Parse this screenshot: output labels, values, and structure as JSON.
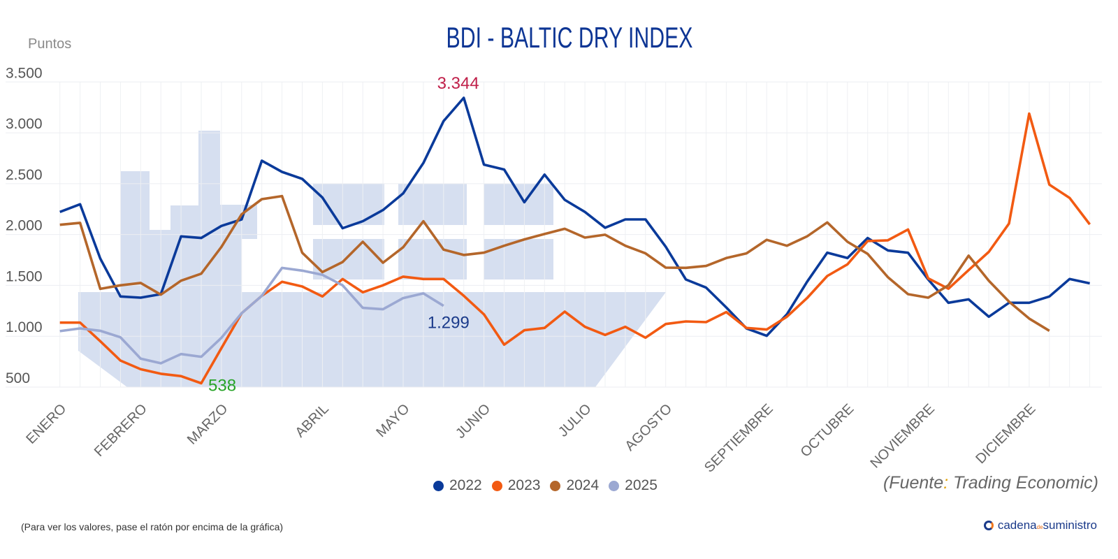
{
  "header": {
    "title": "BDI - BALTIC DRY INDEX",
    "y_unit": "Puntos"
  },
  "chart_data": {
    "type": "line",
    "title": "BDI - BALTIC DRY INDEX",
    "ylabel": "Puntos",
    "xlabel": "",
    "ylim": [
      500,
      3500
    ],
    "y_ticks": [
      {
        "value": 3500,
        "label": "3.500"
      },
      {
        "value": 3000,
        "label": "3.000"
      },
      {
        "value": 2500,
        "label": "2.500"
      },
      {
        "value": 2000,
        "label": "2.000"
      },
      {
        "value": 1500,
        "label": "1.500"
      },
      {
        "value": 1000,
        "label": "1.000"
      },
      {
        "value": 500,
        "label": "500"
      }
    ],
    "points_per_year": 52,
    "month_ticks": [
      {
        "label": "ENERO",
        "index": 0
      },
      {
        "label": "FEBRERO",
        "index": 4
      },
      {
        "label": "MARZO",
        "index": 8
      },
      {
        "label": "ABRIL",
        "index": 13
      },
      {
        "label": "MAYO",
        "index": 17
      },
      {
        "label": "JUNIO",
        "index": 21
      },
      {
        "label": "JULIO",
        "index": 26
      },
      {
        "label": "AGOSTO",
        "index": 30
      },
      {
        "label": "SEPTIEMBRE",
        "index": 35
      },
      {
        "label": "OCTUBRE",
        "index": 39
      },
      {
        "label": "NOVIEMBRE",
        "index": 43
      },
      {
        "label": "DICIEMBRE",
        "index": 48
      }
    ],
    "grid": true,
    "legend_position": "bottom-center",
    "series": [
      {
        "name": "2022",
        "color": "#0a3a9a",
        "values": [
          2222,
          2298,
          1764,
          1391,
          1379,
          1414,
          1982,
          1966,
          2085,
          2149,
          2726,
          2616,
          2547,
          2364,
          2062,
          2131,
          2241,
          2405,
          2703,
          3115,
          3344,
          2687,
          2639,
          2318,
          2589,
          2341,
          2222,
          2067,
          2149,
          2149,
          1880,
          1558,
          1478,
          1283,
          1077,
          1004,
          1215,
          1535,
          1822,
          1769,
          1966,
          1844,
          1821,
          1558,
          1329,
          1363,
          1192,
          1329,
          1329,
          1391,
          1563,
          1520
        ]
      },
      {
        "name": "2023",
        "color": "#f25a12",
        "values": [
          1134,
          1134,
          951,
          761,
          676,
          631,
          608,
          538,
          883,
          1226,
          1398,
          1535,
          1489,
          1391,
          1563,
          1432,
          1501,
          1586,
          1563,
          1563,
          1398,
          1215,
          917,
          1059,
          1082,
          1242,
          1093,
          1013,
          1093,
          986,
          1120,
          1146,
          1139,
          1238,
          1082,
          1066,
          1192,
          1375,
          1592,
          1707,
          1936,
          1943,
          2050,
          1569,
          1467,
          1650,
          1829,
          2108,
          3189,
          2490,
          2360,
          2100
        ]
      },
      {
        "name": "2024",
        "color": "#b4662a",
        "values": [
          2096,
          2115,
          1466,
          1501,
          1524,
          1409,
          1546,
          1615,
          1879,
          2199,
          2348,
          2378,
          1821,
          1631,
          1730,
          1929,
          1723,
          1875,
          2131,
          1852,
          1799,
          1822,
          1890,
          1952,
          2005,
          2057,
          1970,
          1998,
          1890,
          1815,
          1675,
          1673,
          1691,
          1769,
          1815,
          1948,
          1890,
          1982,
          2119,
          1929,
          1810,
          1581,
          1414,
          1379,
          1501,
          1792,
          1546,
          1341,
          1174,
          1054
        ]
      },
      {
        "name": "2025",
        "color": "#9ba8d2",
        "values": [
          1050,
          1077,
          1054,
          990,
          780,
          734,
          825,
          798,
          985,
          1226,
          1398,
          1672,
          1645,
          1604,
          1501,
          1279,
          1265,
          1375,
          1421,
          1299
        ]
      }
    ],
    "annotations": [
      {
        "text": "3.344",
        "series": "2022",
        "index": 20,
        "value": 3344,
        "color": "#c0204a",
        "position": "above"
      },
      {
        "text": "538",
        "series": "2023",
        "index": 7,
        "value": 538,
        "color": "#27a327",
        "position": "right"
      },
      {
        "text": "1.299",
        "series": "2025",
        "index": 19,
        "value": 1299,
        "color": "#1a3a8a",
        "position": "below"
      }
    ]
  },
  "legend": [
    {
      "label": "2022",
      "color": "#0a3a9a"
    },
    {
      "label": "2023",
      "color": "#f25a12"
    },
    {
      "label": "2024",
      "color": "#b4662a"
    },
    {
      "label": "2025",
      "color": "#9ba8d2"
    }
  ],
  "source": {
    "prefix": "(Fuente",
    "colon": ":",
    "rest": " Trading Economic)"
  },
  "footer": {
    "hint": "(Para ver los valores, pase el ratón por encima de la gráfica)",
    "logo_main": "cadena",
    "logo_small": "de",
    "logo_end": "suministro"
  }
}
